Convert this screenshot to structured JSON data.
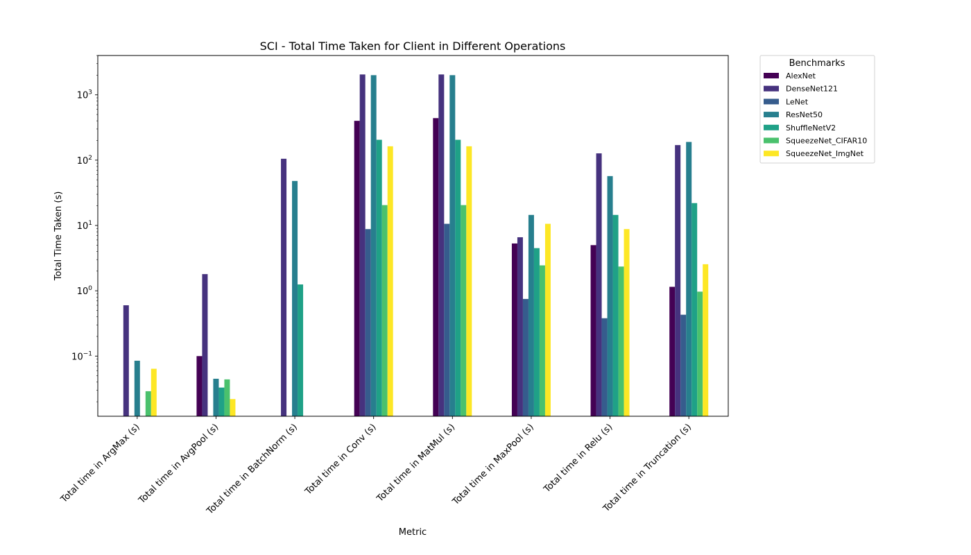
{
  "chart_data": {
    "type": "bar",
    "title": "SCI - Total Time Taken for Client in Different Operations",
    "xlabel": "Metric",
    "ylabel": "Total Time Taken (s)",
    "yscale": "log",
    "ylim": [
      0.012,
      4000
    ],
    "y_ticks": [
      {
        "value": 0.1,
        "base": "10",
        "exp": "−1"
      },
      {
        "value": 1,
        "base": "10",
        "exp": "0"
      },
      {
        "value": 10,
        "base": "10",
        "exp": "1"
      },
      {
        "value": 100,
        "base": "10",
        "exp": "2"
      },
      {
        "value": 1000,
        "base": "10",
        "exp": "3"
      }
    ],
    "grid": false,
    "legend": {
      "title": "Benchmarks",
      "placement": "outside-top-right"
    },
    "categories": [
      "Total time in ArgMax (s)",
      "Total time in AvgPool (s)",
      "Total time in BatchNorm (s)",
      "Total time in Conv (s)",
      "Total time in MatMul (s)",
      "Total time in MaxPool (s)",
      "Total time in Relu (s)",
      "Total time in Truncation (s)"
    ],
    "series": [
      {
        "name": "AlexNet",
        "color": "#440154",
        "values": [
          null,
          0.1,
          null,
          400,
          440,
          5.3,
          5.0,
          1.15
        ]
      },
      {
        "name": "DenseNet121",
        "color": "#46327e",
        "values": [
          0.6,
          1.8,
          105,
          2050,
          2050,
          6.6,
          127,
          170
        ]
      },
      {
        "name": "LeNet",
        "color": "#365c8d",
        "values": [
          null,
          null,
          null,
          8.8,
          10.6,
          0.75,
          0.38,
          0.43
        ]
      },
      {
        "name": "ResNet50",
        "color": "#277f8e",
        "values": [
          0.085,
          0.045,
          48,
          2000,
          2000,
          14.5,
          57,
          190
        ]
      },
      {
        "name": "ShuffleNetV2",
        "color": "#1fa187",
        "values": [
          null,
          0.033,
          1.25,
          205,
          205,
          4.5,
          14.5,
          22
        ]
      },
      {
        "name": "SqueezeNet_CIFAR10",
        "color": "#4ac16d",
        "values": [
          0.029,
          0.044,
          null,
          20.5,
          20.5,
          2.45,
          2.35,
          0.97
        ]
      },
      {
        "name": "SqueezeNet_ImgNet",
        "color": "#fde725",
        "values": [
          0.064,
          0.022,
          null,
          163,
          163,
          10.6,
          8.8,
          2.55
        ]
      }
    ]
  }
}
